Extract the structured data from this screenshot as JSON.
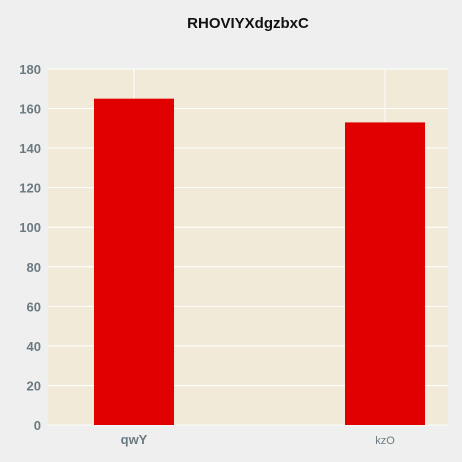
{
  "chart_data": {
    "type": "bar",
    "title": "RHOVIYXdgzbxC",
    "categories": [
      "qwY",
      "kzO"
    ],
    "values": [
      165,
      153
    ],
    "xlabel": "",
    "ylabel": "",
    "ylim": [
      0,
      180
    ],
    "yticks": [
      0,
      20,
      40,
      60,
      80,
      100,
      120,
      140,
      160,
      180
    ],
    "grid": true,
    "bar_color": "#e00000",
    "plot_background": "#f1ead8",
    "grid_color": "#ffffff"
  }
}
